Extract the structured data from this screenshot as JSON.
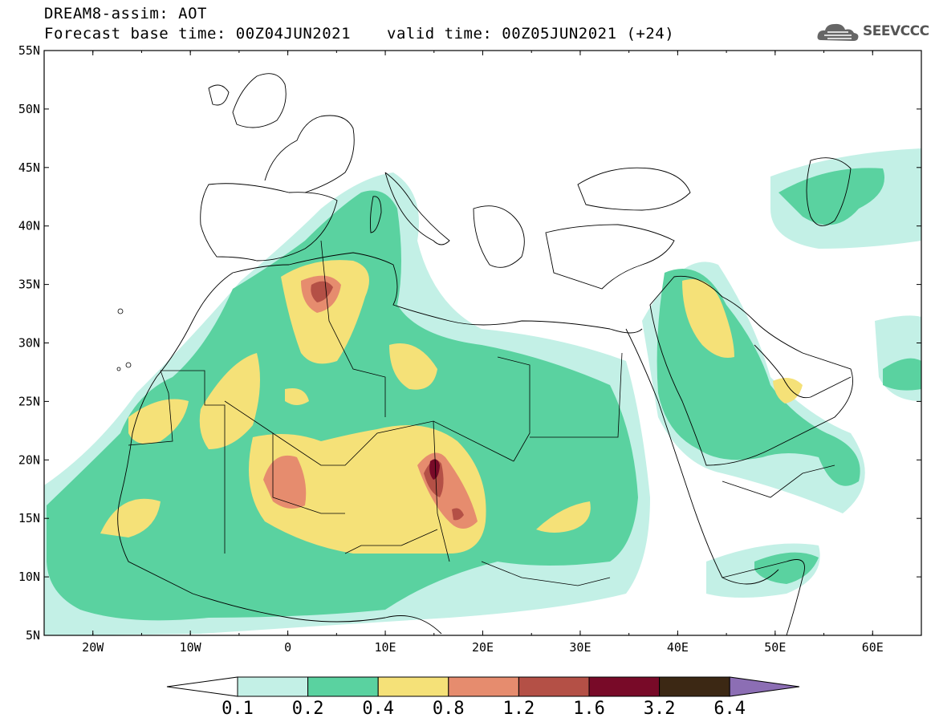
{
  "header": {
    "title": "DREAM8-assim: AOT",
    "base_time": "Forecast base time: 00Z04JUN2021",
    "valid_time": "valid time: 00Z05JUN2021 (+24)",
    "logo_text": "SEEVCCC"
  },
  "map": {
    "projection": "lat-lon",
    "lon_range": [
      -25,
      65
    ],
    "lat_range": [
      5,
      55
    ],
    "lat_labels": [
      "55N",
      "50N",
      "45N",
      "40N",
      "35N",
      "30N",
      "25N",
      "20N",
      "15N",
      "10N",
      "5N"
    ],
    "lon_labels": [
      "20W",
      "10W",
      "0",
      "10E",
      "20E",
      "30E",
      "40E",
      "50E",
      "60E"
    ],
    "field": "Aerosol Optical Thickness"
  },
  "colorbar": {
    "labels": [
      "0.1",
      "0.2",
      "0.4",
      "0.8",
      "1.2",
      "1.6",
      "3.2",
      "6.4"
    ],
    "colors": [
      "#ffffff",
      "#c3f0e6",
      "#5ad2a0",
      "#f5e178",
      "#e68c6e",
      "#b45046",
      "#780a28",
      "#3c2814",
      "#8c6eb4"
    ]
  }
}
